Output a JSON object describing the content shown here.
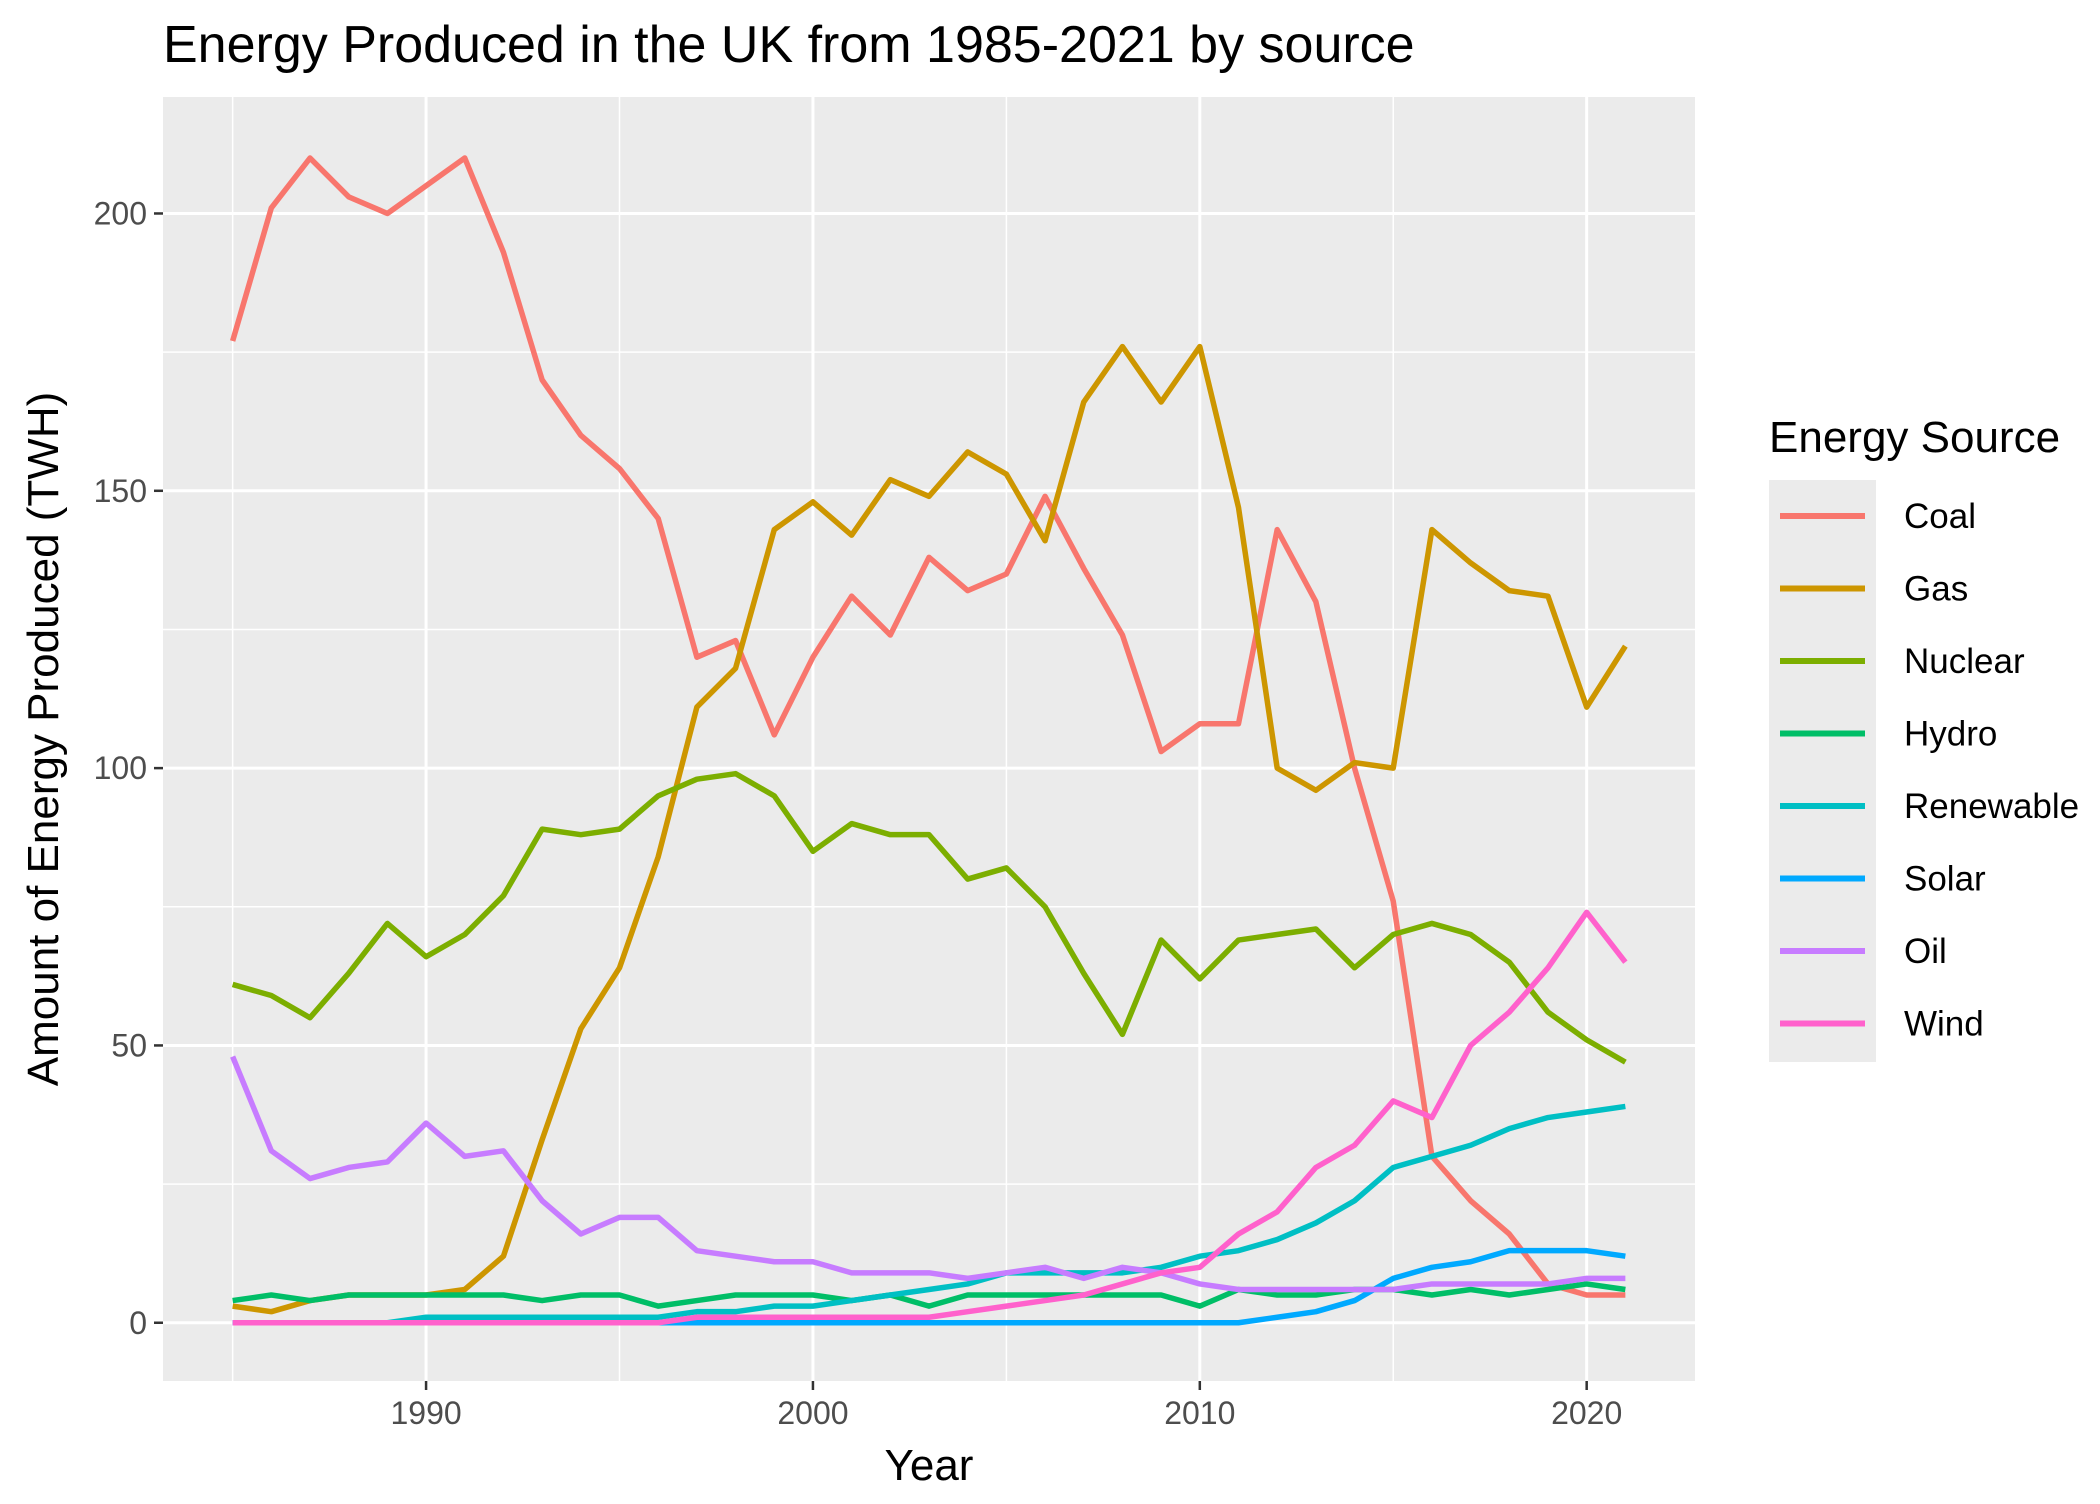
{
  "chart_data": {
    "type": "line",
    "title": "Energy Produced in the UK from 1985-2021 by source",
    "xlabel": "Year",
    "ylabel": "Amount of Energy Produced (TWH)",
    "xlim": [
      1983.2,
      2022.8
    ],
    "ylim": [
      -10.5,
      221
    ],
    "x_ticks": [
      1990,
      2000,
      2010,
      2020
    ],
    "y_ticks": [
      0,
      50,
      100,
      150,
      200
    ],
    "x_minor_ticks": [
      1985,
      1995,
      2005,
      2015
    ],
    "y_minor_ticks": [
      25,
      75,
      125,
      175
    ],
    "grid": true,
    "background": "#ebebeb",
    "legend": {
      "title": "Energy Source",
      "position": "right"
    },
    "x": [
      1985,
      1986,
      1987,
      1988,
      1989,
      1990,
      1991,
      1992,
      1993,
      1994,
      1995,
      1996,
      1997,
      1998,
      1999,
      2000,
      2001,
      2002,
      2003,
      2004,
      2005,
      2006,
      2007,
      2008,
      2009,
      2010,
      2011,
      2012,
      2013,
      2014,
      2015,
      2016,
      2017,
      2018,
      2019,
      2020,
      2021
    ],
    "series": [
      {
        "name": "Coal",
        "color": "#F8766D",
        "values": [
          177,
          201,
          210,
          203,
          200,
          205,
          210,
          193,
          170,
          160,
          154,
          145,
          120,
          123,
          106,
          120,
          131,
          124,
          138,
          132,
          135,
          149,
          136,
          124,
          103,
          108,
          108,
          143,
          130,
          100,
          76,
          30,
          22,
          16,
          7,
          5,
          5
        ]
      },
      {
        "name": "Gas",
        "color": "#CD9600",
        "values": [
          3,
          2,
          4,
          5,
          5,
          5,
          6,
          12,
          33,
          53,
          64,
          84,
          111,
          118,
          143,
          148,
          142,
          152,
          149,
          157,
          153,
          141,
          166,
          176,
          166,
          176,
          147,
          100,
          96,
          101,
          100,
          143,
          137,
          132,
          131,
          111,
          122
        ]
      },
      {
        "name": "Nuclear",
        "color": "#7CAE00",
        "values": [
          61,
          59,
          55,
          63,
          72,
          66,
          70,
          77,
          89,
          88,
          89,
          95,
          98,
          99,
          95,
          85,
          90,
          88,
          88,
          80,
          82,
          75,
          63,
          52,
          69,
          62,
          69,
          70,
          71,
          64,
          70,
          72,
          70,
          65,
          56,
          51,
          47
        ]
      },
      {
        "name": "Hydro",
        "color": "#00BE67",
        "values": [
          4,
          5,
          4,
          5,
          5,
          5,
          5,
          5,
          4,
          5,
          5,
          3,
          4,
          5,
          5,
          5,
          4,
          5,
          3,
          5,
          5,
          5,
          5,
          5,
          5,
          3,
          6,
          5,
          5,
          6,
          6,
          5,
          6,
          5,
          6,
          7,
          6
        ]
      },
      {
        "name": "Renewable",
        "color": "#00BFC4",
        "values": [
          0,
          0,
          0,
          0,
          0,
          1,
          1,
          1,
          1,
          1,
          1,
          1,
          2,
          2,
          3,
          3,
          4,
          5,
          6,
          7,
          9,
          9,
          9,
          9,
          10,
          12,
          13,
          15,
          18,
          22,
          28,
          30,
          32,
          35,
          37,
          38,
          39
        ]
      },
      {
        "name": "Solar",
        "color": "#00A9FF",
        "values": [
          0,
          0,
          0,
          0,
          0,
          0,
          0,
          0,
          0,
          0,
          0,
          0,
          0,
          0,
          0,
          0,
          0,
          0,
          0,
          0,
          0,
          0,
          0,
          0,
          0,
          0,
          0,
          1,
          2,
          4,
          8,
          10,
          11,
          13,
          13,
          13,
          12
        ]
      },
      {
        "name": "Oil",
        "color": "#C77CFF",
        "values": [
          48,
          31,
          26,
          28,
          29,
          36,
          30,
          31,
          22,
          16,
          19,
          19,
          13,
          12,
          11,
          11,
          9,
          9,
          9,
          8,
          9,
          10,
          8,
          10,
          9,
          7,
          6,
          6,
          6,
          6,
          6,
          7,
          7,
          7,
          7,
          8,
          8
        ]
      },
      {
        "name": "Wind",
        "color": "#FF61CC",
        "values": [
          0,
          0,
          0,
          0,
          0,
          0,
          0,
          0,
          0,
          0,
          0,
          0,
          1,
          1,
          1,
          1,
          1,
          1,
          1,
          2,
          3,
          4,
          5,
          7,
          9,
          10,
          16,
          20,
          28,
          32,
          40,
          37,
          50,
          56,
          64,
          74,
          65
        ]
      }
    ]
  }
}
